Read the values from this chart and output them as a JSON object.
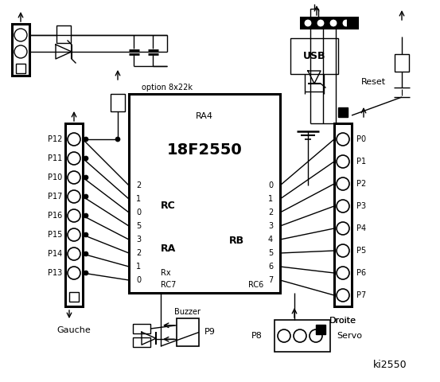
{
  "bg_color": "#ffffff",
  "lw": 1.0,
  "lw_thick": 2.2,
  "chip_label": "18F2550",
  "chip_sublabel": "RA4",
  "rc_label": "RC",
  "ra_label": "RA",
  "rb_label": "RB",
  "rx_label": "Rx",
  "rc7_label": "RC7",
  "rc6_label": "RC6",
  "usb_label": "USB",
  "reset_label": "Reset",
  "gauche_label": "Gauche",
  "droite_label": "Droite",
  "servo_label": "Servo",
  "buzzer_label": "Buzzer",
  "p9_label": "P9",
  "p8_label": "P8",
  "ki2550_label": "ki2550",
  "option_label": "option 8x22k",
  "left_pins": [
    "P12",
    "P11",
    "P10",
    "P17",
    "P16",
    "P15",
    "P14",
    "P13"
  ],
  "right_pins": [
    "P0",
    "P1",
    "P2",
    "P3",
    "P4",
    "P5",
    "P6",
    "P7"
  ],
  "left_rc_nums": [
    "2",
    "1",
    "0"
  ],
  "left_ra_nums": [
    "5",
    "3",
    "2",
    "1",
    "0"
  ],
  "right_rb_nums": [
    "0",
    "1",
    "2",
    "3",
    "4",
    "5",
    "6",
    "7"
  ]
}
